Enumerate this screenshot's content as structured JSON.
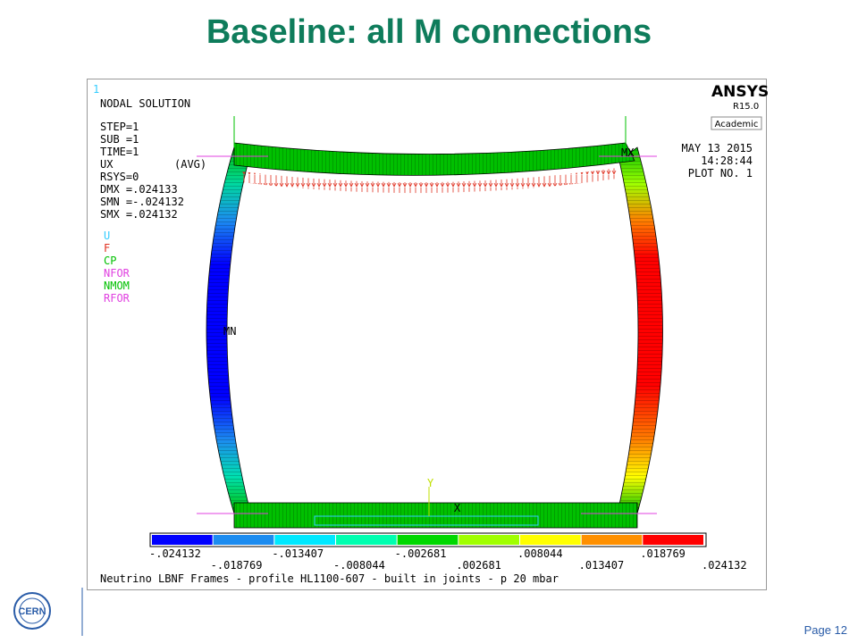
{
  "slide": {
    "title": "Baseline: all M connections",
    "page": "Page 12",
    "logo": "CERN"
  },
  "plot": {
    "number": "1",
    "heading": "NODAL SOLUTION",
    "info": [
      "STEP=1",
      "SUB =1",
      "TIME=1",
      "UX",
      "RSYS=0",
      "DMX =.024133",
      "SMN =-.024132",
      "SMX =.024132"
    ],
    "avg": "(AVG)",
    "symbols": [
      "U",
      "F",
      "CP",
      "NFOR",
      "NMOM",
      "RFOR"
    ],
    "brand": "ANSYS",
    "version": "R15.0",
    "license": "Academic",
    "date": "MAY 13 2015",
    "time": "14:28:44",
    "plot_no": "PLOT NO.   1",
    "node_labels": [
      "MN",
      "MX",
      "Y",
      "X"
    ],
    "contour_labels": [
      "-.024132",
      "-.018769",
      "-.013407",
      "-.008044",
      "-.002681",
      ".002681",
      ".008044",
      ".013407",
      ".018769",
      ".024132"
    ],
    "caption": "Neutrino LBNF Frames - profile HL1100-607 - built in joints - p 20 mbar"
  }
}
